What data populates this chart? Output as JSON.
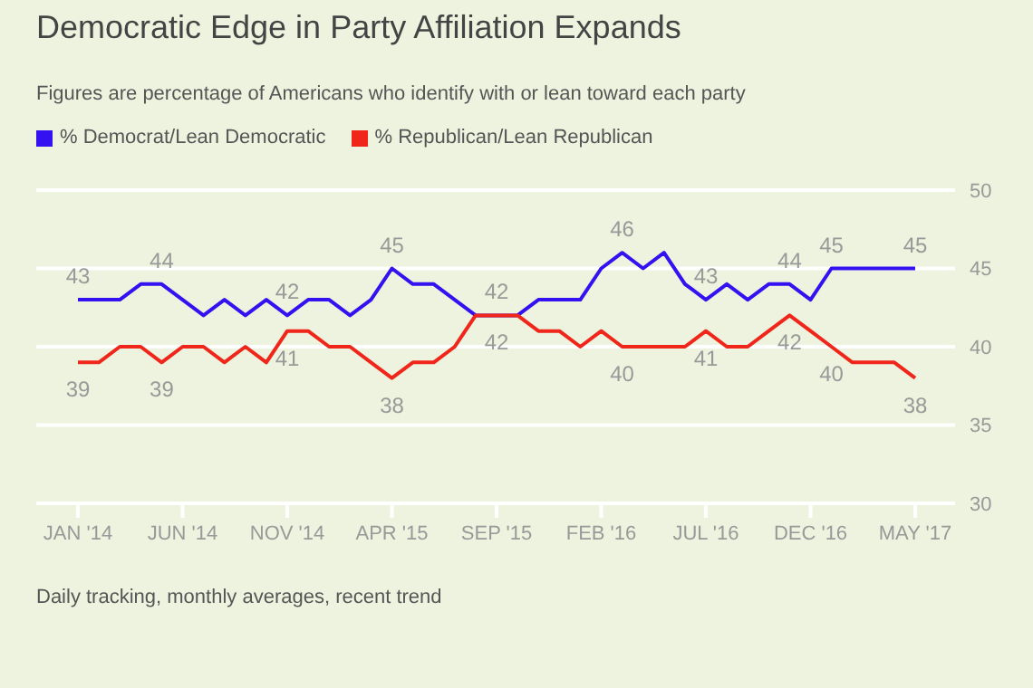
{
  "chart_data": {
    "type": "line",
    "title": "Democratic Edge in Party Affiliation Expands",
    "subtitle": "Figures are percentage of Americans who identify with or lean toward each party",
    "categories": [
      "JAN '14",
      null,
      null,
      null,
      null,
      "JUN '14",
      null,
      null,
      null,
      null,
      "NOV '14",
      null,
      null,
      null,
      null,
      "APR '15",
      null,
      null,
      null,
      null,
      "SEP '15",
      null,
      null,
      null,
      null,
      "FEB '16",
      null,
      null,
      null,
      null,
      "JUL '16",
      null,
      null,
      null,
      null,
      "DEC '16",
      null,
      null,
      null,
      null,
      "MAY '17"
    ],
    "series": [
      {
        "name": "% Democrat/Lean Democratic",
        "color": "#3311f0",
        "values": [
          43,
          43,
          43,
          44,
          44,
          43,
          42,
          43,
          42,
          43,
          42,
          43,
          43,
          42,
          43,
          45,
          44,
          44,
          43,
          42,
          42,
          42,
          43,
          43,
          43,
          45,
          46,
          45,
          46,
          44,
          43,
          44,
          43,
          44,
          44,
          43,
          45,
          45,
          45,
          45,
          45
        ],
        "value_labels": [
          "43",
          null,
          null,
          null,
          "44",
          null,
          null,
          null,
          null,
          null,
          "42",
          null,
          null,
          null,
          null,
          "45",
          null,
          null,
          null,
          null,
          "42",
          null,
          null,
          null,
          null,
          null,
          "46",
          null,
          null,
          null,
          "43",
          null,
          null,
          null,
          "44",
          null,
          "45",
          null,
          null,
          null,
          "45"
        ]
      },
      {
        "name": "% Republican/Lean Republican",
        "color": "#f0261a",
        "values": [
          39,
          39,
          40,
          40,
          39,
          40,
          40,
          39,
          40,
          39,
          41,
          41,
          40,
          40,
          39,
          38,
          39,
          39,
          40,
          42,
          42,
          42,
          41,
          41,
          40,
          41,
          40,
          40,
          40,
          40,
          41,
          40,
          40,
          41,
          42,
          41,
          40,
          39,
          39,
          39,
          38
        ],
        "value_labels": [
          "39",
          null,
          null,
          null,
          "39",
          null,
          null,
          null,
          null,
          null,
          "41",
          null,
          null,
          null,
          null,
          "38",
          null,
          null,
          null,
          null,
          "42",
          null,
          null,
          null,
          null,
          null,
          "40",
          null,
          null,
          null,
          "41",
          null,
          null,
          null,
          "42",
          null,
          "40",
          null,
          null,
          null,
          "38"
        ]
      }
    ],
    "ylim": [
      30,
      50
    ],
    "yticks": [
      30,
      35,
      40,
      45,
      50
    ],
    "grid": "y",
    "legend": "top left",
    "marker": "none",
    "annotations": [
      "Daily tracking, monthly averages, recent trend"
    ]
  }
}
